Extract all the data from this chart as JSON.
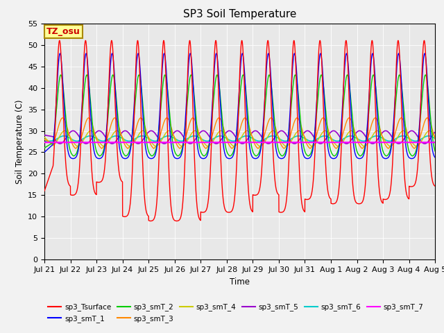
{
  "title": "SP3 Soil Temperature",
  "ylabel": "Soil Temperature (C)",
  "xlabel": "Time",
  "ylim": [
    0,
    55
  ],
  "yticks": [
    0,
    5,
    10,
    15,
    20,
    25,
    30,
    35,
    40,
    45,
    50,
    55
  ],
  "xtick_labels": [
    "Jul 21",
    "Jul 22",
    "Jul 23",
    "Jul 24",
    "Jul 25",
    "Jul 26",
    "Jul 27",
    "Jul 28",
    "Jul 29",
    "Jul 30",
    "Jul 31",
    "Aug 1",
    "Aug 2",
    "Aug 3",
    "Aug 4",
    "Aug 5"
  ],
  "annotation_text": "TZ_osu",
  "annotation_bg": "#FFFF99",
  "annotation_border": "#AA8800",
  "annotation_text_color": "#CC0000",
  "plot_bg_color": "#E8E8E8",
  "fig_bg_color": "#F2F2F2",
  "series_colors": {
    "sp3_Tsurface": "#FF0000",
    "sp3_smT_1": "#0000FF",
    "sp3_smT_2": "#00CC00",
    "sp3_smT_3": "#FF8800",
    "sp3_smT_4": "#CCCC00",
    "sp3_smT_5": "#9900CC",
    "sp3_smT_6": "#00CCCC",
    "sp3_smT_7": "#FF00FF"
  },
  "n_days": 15,
  "ppd": 480,
  "surface_peak": 51.0,
  "surface_min_early": 15.0,
  "surface_min_mid": 9.0,
  "surface_min_late": 14.0,
  "smT1_peak": 48.0,
  "smT1_min": 23.5,
  "smT2_peak": 43.0,
  "smT2_min": 24.0,
  "smT3_peak": 33.0,
  "smT3_min": 25.5,
  "smT4_peak": 30.0,
  "smT4_min": 26.0,
  "smT5_mid": 28.5,
  "smT5_amp": 1.5,
  "smT6_mid": 28.2,
  "smT6_amp": 0.6,
  "smT7_flat": 27.3,
  "figsize": [
    6.4,
    4.8
  ],
  "dpi": 100
}
